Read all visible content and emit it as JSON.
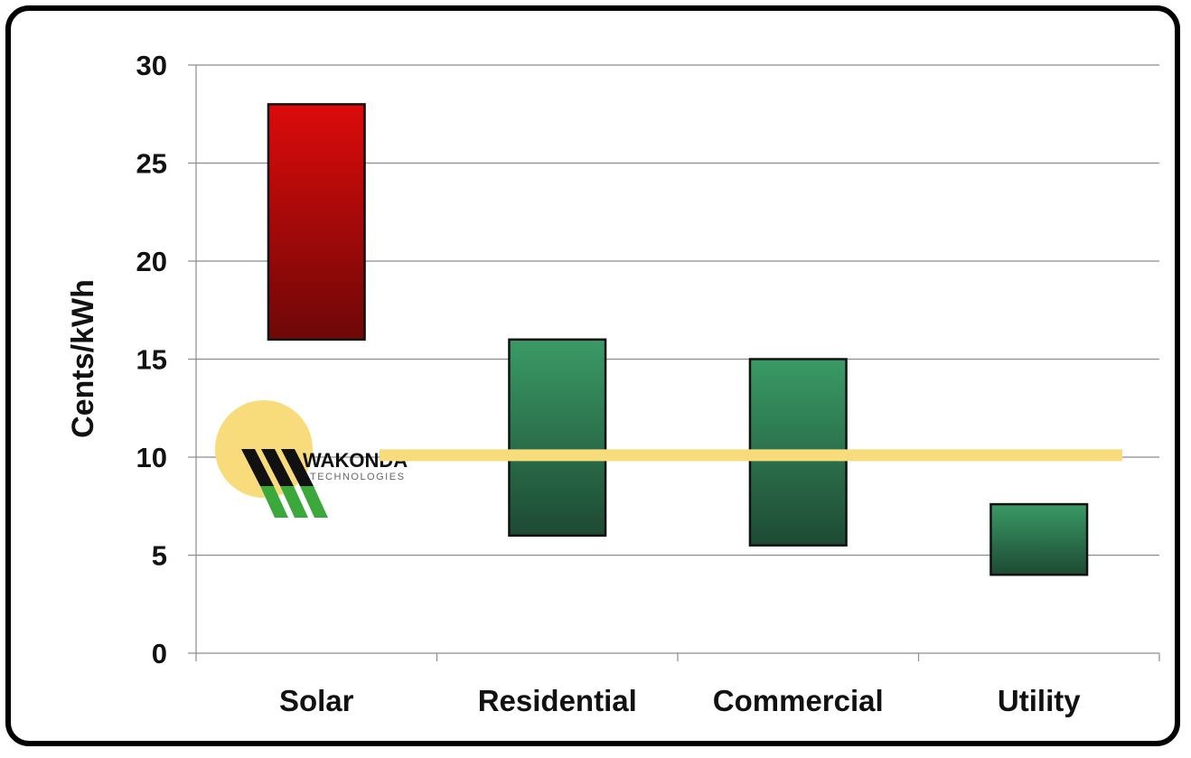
{
  "chart_data": {
    "type": "bar",
    "subtype": "floating-range",
    "categories": [
      "Solar",
      "Residential",
      "Commercial",
      "Utility"
    ],
    "series": [
      {
        "ranges": [
          [
            16,
            28
          ],
          [
            6,
            16
          ],
          [
            5.5,
            15
          ],
          [
            4,
            7.6
          ]
        ],
        "colors": [
          "#cc1111",
          "#2e8b57",
          "#2e8b57",
          "#2e8b57"
        ]
      }
    ],
    "reference_line": {
      "value": 10.1,
      "color": "#f8dc7c"
    },
    "ylabel": "Cents/kWh",
    "xlabel": "",
    "title": "",
    "ylim": [
      0,
      30
    ],
    "yticks": [
      0,
      5,
      10,
      15,
      20,
      25,
      30
    ],
    "grid": true,
    "legend": "none"
  },
  "logo": {
    "name": "WAKONDA",
    "subtitle": "TECHNOLOGIES",
    "sun_color": "#f8dc7c",
    "stripe_dark": "#111111",
    "stripe_green": "#3aa83a"
  },
  "colors": {
    "solar_top": "#dd0a0a",
    "solar_bottom": "#6e0808",
    "grid_top": "#3a9a66",
    "grid_bottom": "#1d4a33"
  }
}
